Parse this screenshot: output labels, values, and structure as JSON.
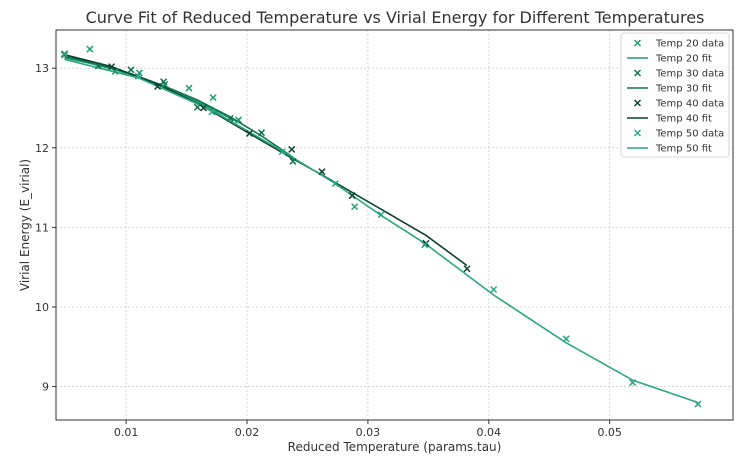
{
  "chart_data": {
    "type": "scatter",
    "title": "Curve Fit of Reduced Temperature vs Virial Energy for Different Temperatures",
    "xlabel": "Reduced Temperature (params.tau)",
    "ylabel": "Virial Energy (E_virial)",
    "xlim": [
      0.0042,
      0.0602
    ],
    "ylim": [
      8.58,
      13.48
    ],
    "xticks": [
      0.01,
      0.02,
      0.03,
      0.04,
      0.05
    ],
    "xtick_labels": [
      "0.01",
      "0.02",
      "0.03",
      "0.04",
      "0.05"
    ],
    "yticks": [
      9,
      10,
      11,
      12,
      13
    ],
    "ytick_labels": [
      "9",
      "10",
      "11",
      "12",
      "13"
    ],
    "grid": true,
    "legend_position": "top-right",
    "series": [
      {
        "name": "Temp 20 data",
        "kind": "scatter",
        "color": "#1a9a6e",
        "x": [
          0.0049,
          0.007,
          0.0091,
          0.0111,
          0.0132,
          0.0152,
          0.0172,
          0.0193
        ],
        "y": [
          13.18,
          13.24,
          12.96,
          12.94,
          12.8,
          12.75,
          12.63,
          12.35
        ]
      },
      {
        "name": "Temp 20 fit",
        "kind": "line",
        "color": "#1a9a6e",
        "x": [
          0.0049,
          0.007,
          0.0091,
          0.0111,
          0.0132,
          0.0152,
          0.0172,
          0.0193
        ],
        "y": [
          13.13,
          13.06,
          12.98,
          12.88,
          12.76,
          12.63,
          12.48,
          12.32
        ]
      },
      {
        "name": "Temp 30 data",
        "kind": "scatter",
        "color": "#11734f",
        "x": [
          0.0049,
          0.0077,
          0.0104,
          0.0131,
          0.0159,
          0.0186,
          0.0212,
          0.0238
        ],
        "y": [
          13.17,
          13.03,
          12.98,
          12.83,
          12.51,
          12.37,
          12.19,
          11.83
        ]
      },
      {
        "name": "Temp 30 fit",
        "kind": "line",
        "color": "#11734f",
        "x": [
          0.0049,
          0.0077,
          0.0104,
          0.0131,
          0.0159,
          0.0186,
          0.0212,
          0.0238
        ],
        "y": [
          13.15,
          13.05,
          12.93,
          12.78,
          12.6,
          12.39,
          12.15,
          11.88
        ]
      },
      {
        "name": "Temp 40 data",
        "kind": "scatter",
        "color": "#0b4231",
        "x": [
          0.0049,
          0.0088,
          0.0126,
          0.0164,
          0.0202,
          0.0237,
          0.0262,
          0.0287,
          0.0348,
          0.0382
        ],
        "y": [
          13.18,
          13.02,
          12.77,
          12.5,
          12.18,
          11.98,
          11.7,
          11.4,
          10.8,
          10.48
        ]
      },
      {
        "name": "Temp 40 fit",
        "kind": "line",
        "color": "#0b4231",
        "x": [
          0.0049,
          0.0088,
          0.0126,
          0.0164,
          0.0202,
          0.0237,
          0.0262,
          0.0287,
          0.0348,
          0.0382
        ],
        "y": [
          13.17,
          13.02,
          12.8,
          12.52,
          12.18,
          11.87,
          11.66,
          11.44,
          10.9,
          10.52
        ]
      },
      {
        "name": "Temp 50 data",
        "kind": "scatter",
        "color": "#2aa882",
        "x": [
          0.0049,
          0.011,
          0.0171,
          0.0229,
          0.0273,
          0.0289,
          0.0311,
          0.0347,
          0.0404,
          0.0464,
          0.0519,
          0.0573
        ],
        "y": [
          13.18,
          12.9,
          12.45,
          11.95,
          11.55,
          11.26,
          11.16,
          10.78,
          10.22,
          9.6,
          9.05,
          8.78
        ]
      },
      {
        "name": "Temp 50 fit",
        "kind": "line",
        "color": "#2aa882",
        "x": [
          0.0049,
          0.011,
          0.0171,
          0.0229,
          0.0273,
          0.0289,
          0.0311,
          0.0347,
          0.0404,
          0.0464,
          0.0519,
          0.0573
        ],
        "y": [
          13.11,
          12.88,
          12.47,
          11.96,
          11.55,
          11.38,
          11.15,
          10.8,
          10.15,
          9.55,
          9.08,
          8.8
        ]
      }
    ]
  }
}
